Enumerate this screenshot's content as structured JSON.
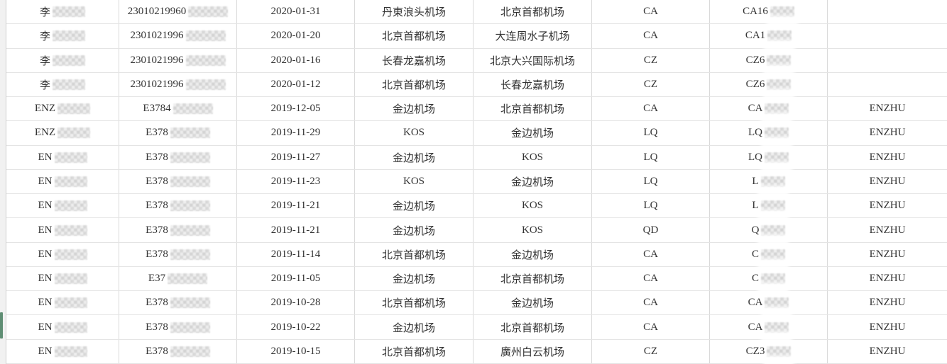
{
  "colors": {
    "selection_green": "#5f8e74",
    "grid_vertical": "#dadada",
    "grid_horizontal": "#e4e4e4",
    "text": "#333333",
    "gutter_bg": "#f1f1f1"
  },
  "table": {
    "rows": [
      {
        "name_prefix": "李",
        "id_prefix": "23010219960",
        "date": "2020-01-31",
        "departure": "丹東浪头机场",
        "arrival": "北京首都机场",
        "airline": "CA",
        "flight_prefix": "CA16",
        "passenger": ""
      },
      {
        "name_prefix": "李",
        "id_prefix": "2301021996",
        "date": "2020-01-20",
        "departure": "北京首都机场",
        "arrival": "大连周水子机场",
        "airline": "CA",
        "flight_prefix": "CA1",
        "passenger": ""
      },
      {
        "name_prefix": "李",
        "id_prefix": "2301021996",
        "date": "2020-01-16",
        "departure": "长春龙嘉机场",
        "arrival": "北京大兴国际机场",
        "airline": "CZ",
        "flight_prefix": "CZ6",
        "passenger": ""
      },
      {
        "name_prefix": "李",
        "id_prefix": "2301021996",
        "date": "2020-01-12",
        "departure": "北京首都机场",
        "arrival": "长春龙嘉机场",
        "airline": "CZ",
        "flight_prefix": "CZ6",
        "passenger": ""
      },
      {
        "name_prefix": "ENZ",
        "id_prefix": "E3784",
        "date": "2019-12-05",
        "departure": "金边机场",
        "arrival": "北京首都机场",
        "airline": "CA",
        "flight_prefix": "CA",
        "passenger": "ENZHU"
      },
      {
        "name_prefix": "ENZ",
        "id_prefix": "E378",
        "date": "2019-11-29",
        "departure": "KOS",
        "arrival": "金边机场",
        "airline": "LQ",
        "flight_prefix": "LQ",
        "passenger": "ENZHU"
      },
      {
        "name_prefix": "EN",
        "id_prefix": "E378",
        "date": "2019-11-27",
        "departure": "金边机场",
        "arrival": "KOS",
        "airline": "LQ",
        "flight_prefix": "LQ",
        "passenger": "ENZHU"
      },
      {
        "name_prefix": "EN",
        "id_prefix": "E378",
        "date": "2019-11-23",
        "departure": "KOS",
        "arrival": "金边机场",
        "airline": "LQ",
        "flight_prefix": "L",
        "passenger": "ENZHU"
      },
      {
        "name_prefix": "EN",
        "id_prefix": "E378",
        "date": "2019-11-21",
        "departure": "金边机场",
        "arrival": "KOS",
        "airline": "LQ",
        "flight_prefix": "L",
        "passenger": "ENZHU"
      },
      {
        "name_prefix": "EN",
        "id_prefix": "E378",
        "date": "2019-11-21",
        "departure": "金边机场",
        "arrival": "KOS",
        "airline": "QD",
        "flight_prefix": "Q",
        "passenger": "ENZHU"
      },
      {
        "name_prefix": "EN",
        "id_prefix": "E378",
        "date": "2019-11-14",
        "departure": "北京首都机场",
        "arrival": "金边机场",
        "airline": "CA",
        "flight_prefix": "C",
        "passenger": "ENZHU"
      },
      {
        "name_prefix": "EN",
        "id_prefix": "E37",
        "date": "2019-11-05",
        "departure": "金边机场",
        "arrival": "北京首都机场",
        "airline": "CA",
        "flight_prefix": "C",
        "passenger": "ENZHU"
      },
      {
        "name_prefix": "EN",
        "id_prefix": "E378",
        "date": "2019-10-28",
        "departure": "北京首都机场",
        "arrival": "金边机场",
        "airline": "CA",
        "flight_prefix": "CA",
        "passenger": "ENZHU"
      },
      {
        "name_prefix": "EN",
        "id_prefix": "E378",
        "date": "2019-10-22",
        "departure": "金边机场",
        "arrival": "北京首都机场",
        "airline": "CA",
        "flight_prefix": "CA",
        "passenger": "ENZHU"
      },
      {
        "name_prefix": "EN",
        "id_prefix": "E378",
        "date": "2019-10-15",
        "departure": "北京首都机场",
        "arrival": "廣州白云机场",
        "airline": "CZ",
        "flight_prefix": "CZ3",
        "passenger": "ENZHU"
      }
    ]
  }
}
